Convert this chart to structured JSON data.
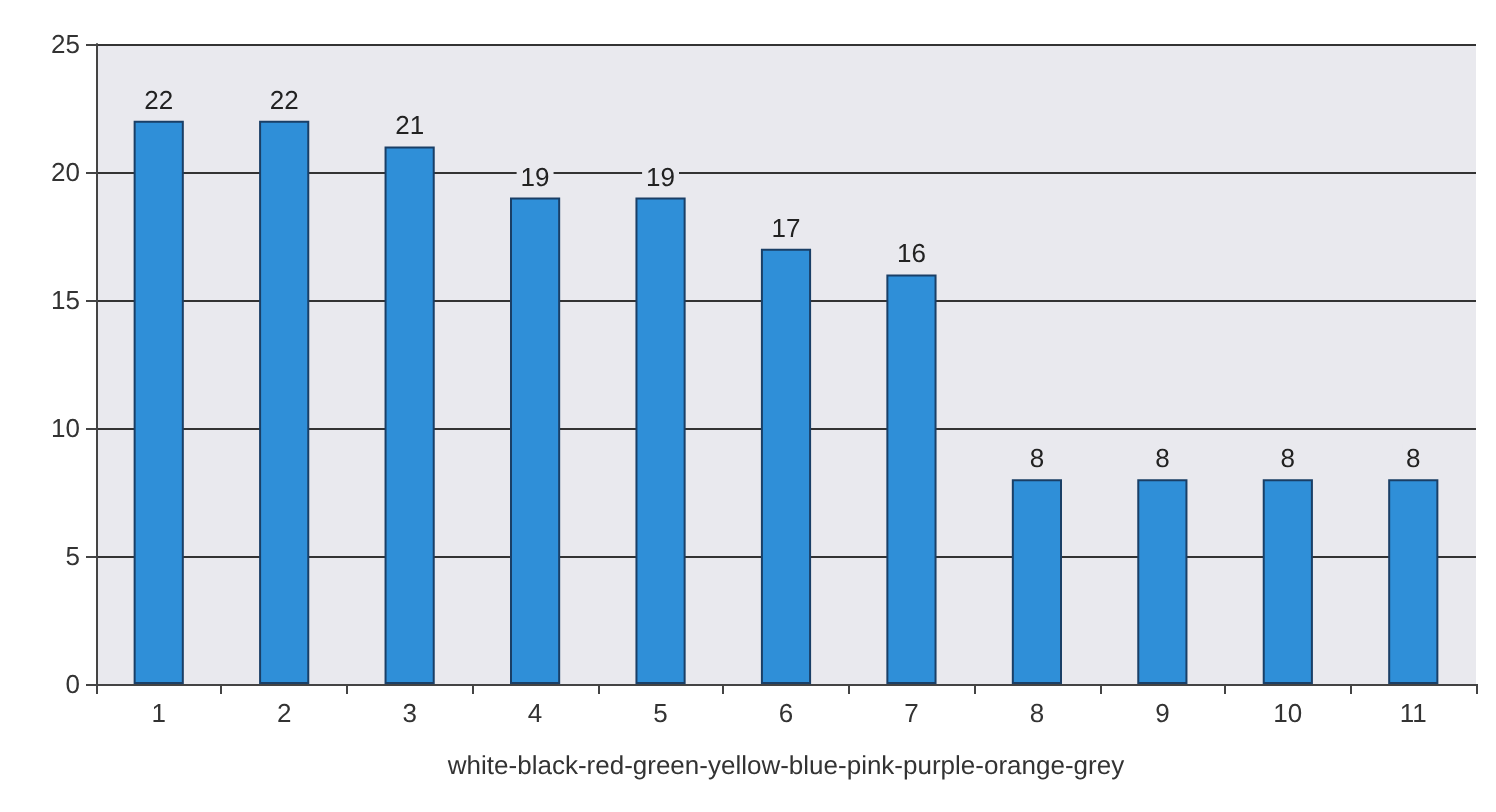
{
  "chart_data": {
    "type": "bar",
    "xlabel": "white-black-red-green-yellow-blue-pink-purple-orange-grey",
    "categories": [
      "1",
      "2",
      "3",
      "4",
      "5",
      "6",
      "7",
      "8",
      "9",
      "10",
      "11"
    ],
    "values": [
      22,
      22,
      21,
      19,
      19,
      17,
      16,
      8,
      8,
      8,
      8
    ],
    "color": "#2f8fd8",
    "ylim": [
      0,
      25
    ],
    "yticks": [
      0,
      5,
      10,
      15,
      20,
      25
    ],
    "grid": "y",
    "data_labels": true
  }
}
